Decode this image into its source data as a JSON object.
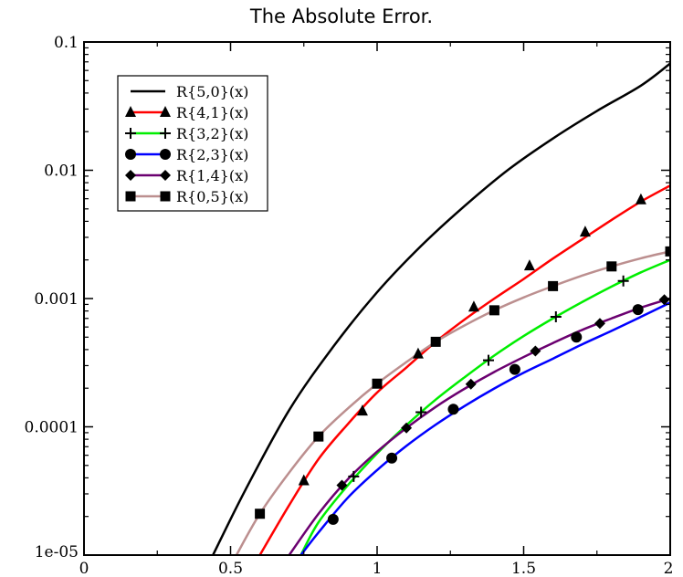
{
  "chart_data": {
    "type": "line",
    "title": "The Absolute Error.",
    "xlabel": "",
    "ylabel": "",
    "xlim": [
      0,
      2
    ],
    "ylim": [
      1e-05,
      0.1
    ],
    "yscale": "log",
    "grid": false,
    "legend_position": "top-left",
    "x_ticks": [
      {
        "value": 0,
        "label": "0"
      },
      {
        "value": 0.5,
        "label": "0.5"
      },
      {
        "value": 1,
        "label": "1"
      },
      {
        "value": 1.5,
        "label": "1.5"
      },
      {
        "value": 2,
        "label": "2"
      }
    ],
    "y_ticks": [
      {
        "value": 1e-05,
        "label": "1e-05"
      },
      {
        "value": 0.0001,
        "label": "0.0001"
      },
      {
        "value": 0.001,
        "label": "0.001"
      },
      {
        "value": 0.01,
        "label": "0.01"
      },
      {
        "value": 0.1,
        "label": "0.1"
      }
    ],
    "series": [
      {
        "name": "R{5,0}(x)",
        "color": "#000000",
        "marker": "none",
        "x": [
          0.44,
          0.55,
          0.7,
          0.85,
          1.0,
          1.15,
          1.3,
          1.45,
          1.6,
          1.75,
          1.9,
          2.0
        ],
        "y": [
          1e-05,
          3.2e-05,
          0.000135,
          0.00042,
          0.00112,
          0.00257,
          0.0053,
          0.0102,
          0.0177,
          0.029,
          0.0457,
          0.068
        ],
        "marker_x": [],
        "marker_y": []
      },
      {
        "name": "R{4,1}(x)",
        "color": "#ff0000",
        "marker": "triangle",
        "x": [
          0.6,
          0.7,
          0.8,
          0.9,
          1.0,
          1.1,
          1.2,
          1.3,
          1.4,
          1.5,
          1.6,
          1.7,
          1.8,
          1.9,
          2.0
        ],
        "y": [
          1e-05,
          2.45e-05,
          5.6e-05,
          0.000105,
          0.000185,
          0.00029,
          0.00046,
          0.00069,
          0.001,
          0.00142,
          0.00205,
          0.0029,
          0.0041,
          0.0057,
          0.0076
        ],
        "marker_x": [
          0.75,
          0.95,
          1.14,
          1.33,
          1.52,
          1.71,
          1.9
        ],
        "marker_y": [
          3.8e-05,
          0.000133,
          0.00037,
          0.00086,
          0.0018,
          0.0033,
          0.0059
        ]
      },
      {
        "name": "R{3,2}(x)",
        "color": "#00ee00",
        "marker": "plus",
        "x": [
          0.74,
          0.8,
          0.9,
          1.0,
          1.1,
          1.2,
          1.3,
          1.4,
          1.5,
          1.6,
          1.7,
          1.8,
          1.9,
          2.0
        ],
        "y": [
          1e-05,
          1.8e-05,
          3.5e-05,
          6.2e-05,
          0.000103,
          0.000163,
          0.000245,
          0.00036,
          0.00051,
          0.0007,
          0.00094,
          0.00124,
          0.0016,
          0.002
        ],
        "marker_x": [
          0.92,
          1.15,
          1.38,
          1.61,
          1.84
        ],
        "marker_y": [
          4.1e-05,
          0.00013,
          0.00033,
          0.00072,
          0.00137
        ]
      },
      {
        "name": "R{2,3}(x)",
        "color": "#0000ff",
        "marker": "circle",
        "x": [
          0.74,
          0.8,
          0.9,
          1.0,
          1.1,
          1.2,
          1.3,
          1.4,
          1.5,
          1.6,
          1.7,
          1.8,
          1.9,
          2.0
        ],
        "y": [
          1e-05,
          1.5e-05,
          2.8e-05,
          4.6e-05,
          7.1e-05,
          0.000104,
          0.000146,
          0.000199,
          0.000264,
          0.00034,
          0.00044,
          0.00056,
          0.00072,
          0.00093
        ],
        "marker_x": [
          0.85,
          1.05,
          1.26,
          1.47,
          1.68,
          1.89
        ],
        "marker_y": [
          1.9e-05,
          5.7e-05,
          0.000137,
          0.00028,
          0.0005,
          0.00082
        ]
      },
      {
        "name": "R{1,4}(x)",
        "color": "#6b0070",
        "marker": "diamond",
        "x": [
          0.7,
          0.8,
          0.9,
          1.0,
          1.1,
          1.2,
          1.3,
          1.4,
          1.5,
          1.6,
          1.7,
          1.8,
          1.9,
          2.0
        ],
        "y": [
          1e-05,
          2.1e-05,
          3.9e-05,
          6.4e-05,
          9.8e-05,
          0.000143,
          0.000199,
          0.000268,
          0.00035,
          0.00045,
          0.00057,
          0.0007,
          0.00085,
          0.001
        ],
        "marker_x": [
          0.88,
          1.1,
          1.32,
          1.54,
          1.76,
          1.98
        ],
        "marker_y": [
          3.5e-05,
          9.8e-05,
          0.000215,
          0.00039,
          0.00064,
          0.00098
        ]
      },
      {
        "name": "R{0,5}(x)",
        "color": "#bc8f8f",
        "marker": "square",
        "x": [
          0.52,
          0.6,
          0.7,
          0.8,
          0.9,
          1.0,
          1.1,
          1.2,
          1.3,
          1.4,
          1.5,
          1.6,
          1.7,
          1.8,
          1.9,
          2.0
        ],
        "y": [
          1e-05,
          2.1e-05,
          4.4e-05,
          8.4e-05,
          0.000139,
          0.000217,
          0.00032,
          0.00046,
          0.00062,
          0.00081,
          0.00102,
          0.00125,
          0.00151,
          0.00178,
          0.00206,
          0.00233
        ],
        "marker_x": [
          0.6,
          0.8,
          1.0,
          1.2,
          1.4,
          1.6,
          1.8,
          2.0
        ],
        "marker_y": [
          2.1e-05,
          8.4e-05,
          0.000217,
          0.00046,
          0.00081,
          0.00125,
          0.00178,
          0.00233
        ]
      }
    ]
  }
}
